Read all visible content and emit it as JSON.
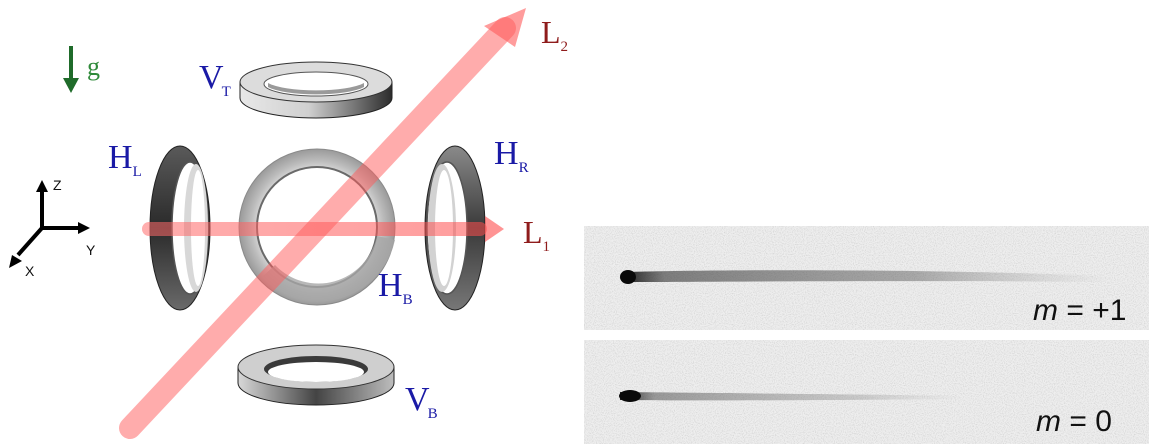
{
  "gravity": {
    "label": "g"
  },
  "axes": {
    "z": "Z",
    "y": "Y",
    "x": "X"
  },
  "coils": {
    "top": {
      "main": "V",
      "sub": "T"
    },
    "bottom": {
      "main": "V",
      "sub": "B"
    },
    "left": {
      "main": "H",
      "sub": "L"
    },
    "right": {
      "main": "H",
      "sub": "R"
    },
    "back": {
      "main": "H",
      "sub": "B"
    }
  },
  "beams": {
    "l1": {
      "main": "L",
      "sub": "1"
    },
    "l2": {
      "main": "L",
      "sub": "2"
    }
  },
  "panels": [
    {
      "var": "m",
      "eq": " = +1"
    },
    {
      "var": "m",
      "eq": " =  0"
    }
  ],
  "colors": {
    "coil_label": "#1a1aa6",
    "beam_label": "#8f1c1c",
    "gravity": "#2f8a3a",
    "beam": "#ff5a5a"
  }
}
